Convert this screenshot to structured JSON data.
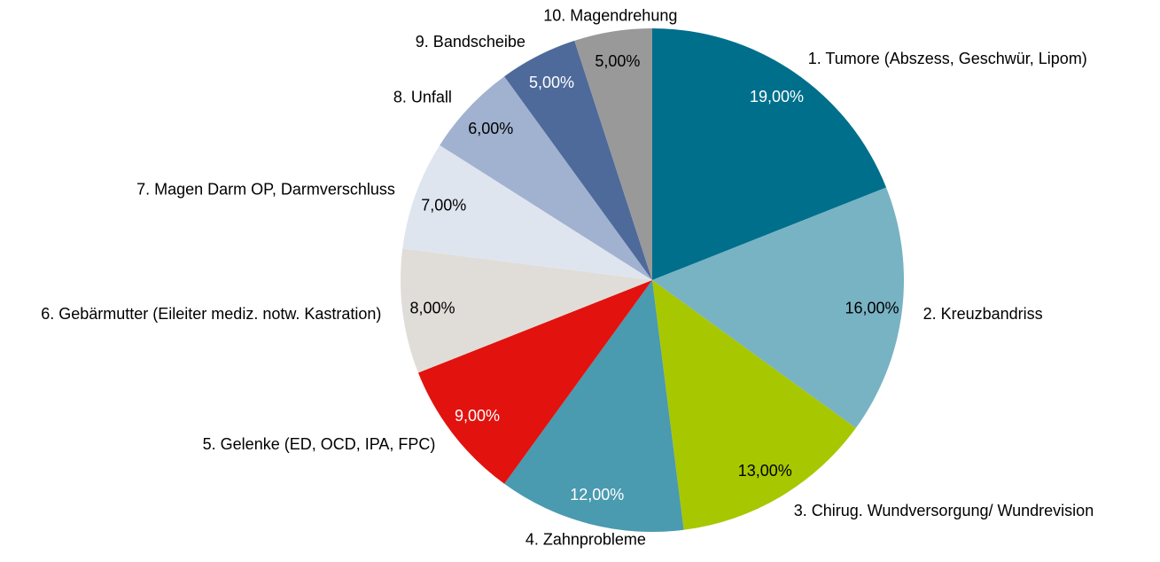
{
  "chart_data": {
    "type": "pie",
    "title": "",
    "start_angle_deg": 0,
    "direction": "clockwise",
    "slices": [
      {
        "label": "1. Tumore (Abszess, Geschwür, Lipom)",
        "value": 19,
        "value_text": "19,00%",
        "color": "#006F8C",
        "value_color": "#FFFFFF"
      },
      {
        "label": "2. Kreuzbandriss",
        "value": 16,
        "value_text": "16,00%",
        "color": "#78B3C3",
        "value_color": "#000000"
      },
      {
        "label": "3. Chirug. Wundversorgung/ Wundrevision",
        "value": 13,
        "value_text": "13,00%",
        "color": "#A7C700",
        "value_color": "#000000"
      },
      {
        "label": "4. Zahnprobleme",
        "value": 12,
        "value_text": "12,00%",
        "color": "#4A9AB0",
        "value_color": "#FFFFFF"
      },
      {
        "label": "5. Gelenke (ED, OCD, IPA, FPC)",
        "value": 9,
        "value_text": "9,00%",
        "color": "#E2120E",
        "value_color": "#FFFFFF"
      },
      {
        "label": "6. Gebärmutter (Eileiter mediz. notw. Kastration)",
        "value": 8,
        "value_text": "8,00%",
        "color": "#E0DDD9",
        "value_color": "#000000"
      },
      {
        "label": "7. Magen Darm OP, Darmverschluss",
        "value": 7,
        "value_text": "7,00%",
        "color": "#DFE5EF",
        "value_color": "#000000"
      },
      {
        "label": "8. Unfall",
        "value": 6,
        "value_text": "6,00%",
        "color": "#A1B2D0",
        "value_color": "#000000"
      },
      {
        "label": "9. Bandscheibe",
        "value": 5,
        "value_text": "5,00%",
        "color": "#4D6A9A",
        "value_color": "#FFFFFF"
      },
      {
        "label": "10. Magendrehung",
        "value": 5,
        "value_text": "5,00%",
        "color": "#999999",
        "value_color": "#000000"
      }
    ]
  }
}
